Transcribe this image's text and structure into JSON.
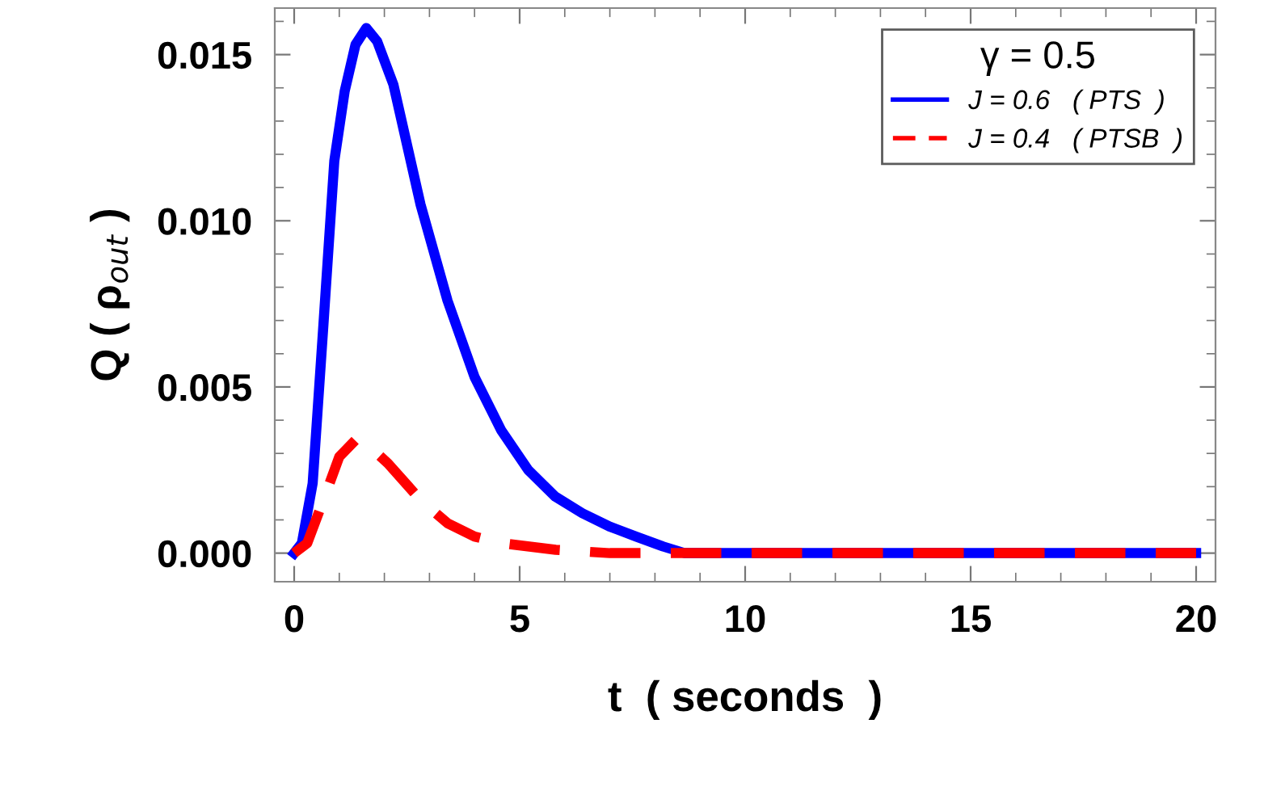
{
  "chart_data": {
    "type": "line",
    "xlabel": "t  ( seconds  )",
    "ylabel": "Q ( ρ$_{out}$ )",
    "legend_title": "γ = 0.5",
    "series": [
      {
        "name": "J = 0.6   ( PTS  )",
        "color": "#0000ff",
        "line_style": "solid",
        "x": [
          0,
          0.17,
          0.41,
          0.65,
          0.89,
          1.12,
          1.36,
          1.6,
          1.84,
          2.2,
          2.8,
          3.4,
          4.0,
          4.59,
          5.19,
          5.79,
          6.39,
          6.99,
          7.58,
          8.18,
          8.66,
          20
        ],
        "values": [
          0,
          0.0003,
          0.0021,
          0.0069,
          0.0118,
          0.0139,
          0.0153,
          0.0158,
          0.0154,
          0.0141,
          0.0105,
          0.0076,
          0.0053,
          0.0037,
          0.0025,
          0.0017,
          0.0012,
          0.0008,
          0.0005,
          0.0002,
          0,
          0
        ]
      },
      {
        "name": "J = 0.4   ( PTSB  )",
        "color": "#ff0000",
        "line_style": "dashed",
        "x": [
          0,
          0.29,
          0.65,
          1.0,
          1.36,
          1.6,
          2.08,
          2.8,
          3.4,
          4.0,
          4.6,
          5.8,
          7.0,
          20
        ],
        "values": [
          0,
          0.0003,
          0.0016,
          0.0029,
          0.0034,
          0.0033,
          0.0027,
          0.0016,
          0.0009,
          0.0005,
          0.0003,
          0.0001,
          0,
          0
        ]
      }
    ],
    "xlim": [
      -0.43,
      20.43
    ],
    "ylim": [
      -0.00086,
      0.0164
    ],
    "xticks": [
      0,
      5,
      10,
      15,
      20
    ],
    "yticks": [
      {
        "value": 0,
        "label": "0.000"
      },
      {
        "value": 0.005,
        "label": "0.005"
      },
      {
        "value": 0.01,
        "label": "0.010"
      },
      {
        "value": 0.015,
        "label": "0.015"
      }
    ],
    "grid": false,
    "legend": "top right",
    "marker": "none"
  }
}
